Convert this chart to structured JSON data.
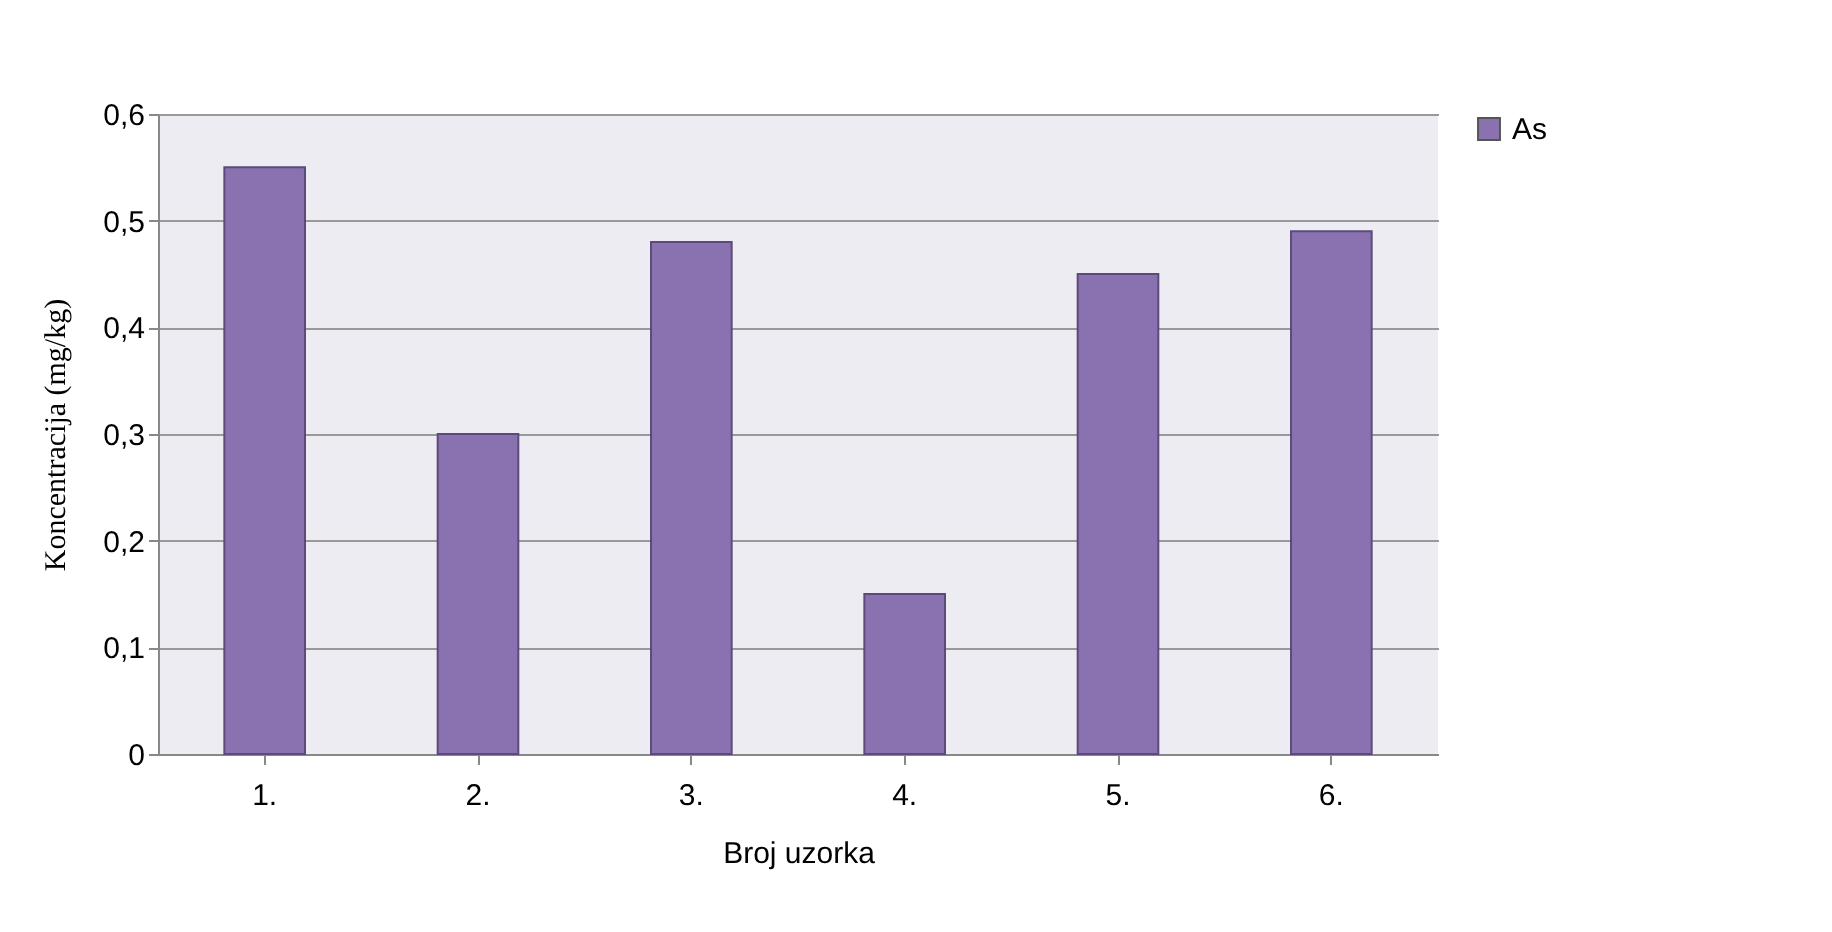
{
  "chart_data": {
    "type": "bar",
    "xlabel": "Broj uzorka",
    "ylabel": "Koncentracija (mg/kg)",
    "categories": [
      "1.",
      "2.",
      "3.",
      "4.",
      "5.",
      "6."
    ],
    "series": [
      {
        "name": "As",
        "color": "#8a72b0",
        "values": [
          0.55,
          0.3,
          0.48,
          0.15,
          0.45,
          0.49
        ]
      }
    ],
    "ylim": [
      0,
      0.6
    ],
    "yticks": [
      {
        "value": 0,
        "label": "0"
      },
      {
        "value": 0.1,
        "label": "0,1"
      },
      {
        "value": 0.2,
        "label": "0,2"
      },
      {
        "value": 0.3,
        "label": "0,3"
      },
      {
        "value": 0.4,
        "label": "0,4"
      },
      {
        "value": 0.5,
        "label": "0,5"
      },
      {
        "value": 0.6,
        "label": "0,6"
      }
    ],
    "grid": "y",
    "legend": "right"
  }
}
